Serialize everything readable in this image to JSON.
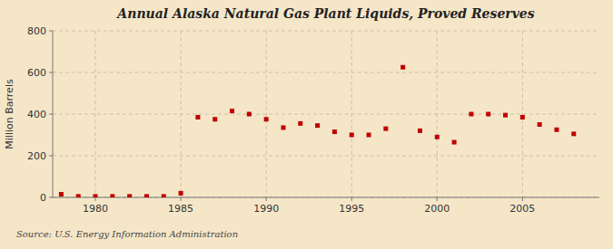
{
  "chart_data": {
    "type": "scatter",
    "title": "Annual Alaska Natural Gas Plant Liquids, Proved Reserves",
    "y_label": "Million Barrels",
    "annotations": [
      "Source: U.S. Energy Information Administration"
    ],
    "x": [
      1978,
      1979,
      1980,
      1981,
      1982,
      1983,
      1984,
      1985,
      1986,
      1987,
      1988,
      1989,
      1990,
      1991,
      1992,
      1993,
      1994,
      1995,
      1996,
      1997,
      1998,
      1999,
      2000,
      2001,
      2002,
      2003,
      2004,
      2005,
      2006,
      2007,
      2008
    ],
    "values": [
      15,
      5,
      5,
      5,
      5,
      5,
      5,
      20,
      385,
      375,
      415,
      400,
      375,
      335,
      355,
      345,
      315,
      300,
      300,
      330,
      625,
      320,
      290,
      265,
      400,
      400,
      395,
      385,
      350,
      325,
      305
    ],
    "color": "#c00000",
    "marker": "square",
    "xlim": [
      1977.5,
      2009.5
    ],
    "xticks": [
      1980,
      1985,
      1990,
      1995,
      2000,
      2005
    ],
    "ylim": [
      0,
      800
    ],
    "yticks": [
      0,
      200,
      400,
      600,
      800
    ],
    "grid": true
  }
}
